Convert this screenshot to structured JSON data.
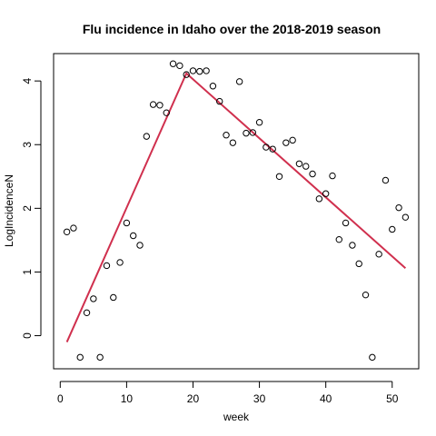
{
  "chart_data": {
    "type": "scatter",
    "title": "Flu incidence in Idaho over the 2018-2019 season",
    "xlabel": "week",
    "ylabel": "LogIncidenceN",
    "xlim": [
      -1,
      54
    ],
    "ylim": [
      -0.52,
      4.43
    ],
    "xticks": [
      0,
      10,
      20,
      30,
      40,
      50
    ],
    "yticks": [
      0,
      1,
      2,
      3,
      4
    ],
    "grid": false,
    "legend": "none",
    "series": [
      {
        "kind": "points",
        "x": [
          1,
          2,
          3,
          4,
          5,
          6,
          7,
          8,
          9,
          10,
          11,
          12,
          13,
          14,
          15,
          16,
          17,
          18,
          19,
          20,
          21,
          22,
          23,
          24,
          25,
          26,
          27,
          28,
          29,
          30,
          31,
          32,
          33,
          34,
          35,
          36,
          37,
          38,
          39,
          40,
          41,
          42,
          43,
          44,
          45,
          46,
          47,
          48,
          49,
          50,
          51,
          52
        ],
        "y": [
          1.63,
          1.69,
          -0.34,
          0.36,
          0.58,
          -0.34,
          1.1,
          0.6,
          1.15,
          1.77,
          1.57,
          1.42,
          3.13,
          3.63,
          3.62,
          3.5,
          4.27,
          4.24,
          4.1,
          4.16,
          4.15,
          4.16,
          3.92,
          3.68,
          3.15,
          3.03,
          3.99,
          3.18,
          3.19,
          3.35,
          2.96,
          2.93,
          2.5,
          3.03,
          3.07,
          2.7,
          2.66,
          2.54,
          2.15,
          2.23,
          2.51,
          1.51,
          1.77,
          1.42,
          1.13,
          0.64,
          -0.34,
          1.28,
          2.44,
          1.67,
          2.01,
          1.86
        ]
      },
      {
        "kind": "line",
        "x": [
          1,
          19,
          52
        ],
        "y": [
          -0.1,
          4.12,
          1.06
        ],
        "color": "#d0304e"
      }
    ]
  }
}
